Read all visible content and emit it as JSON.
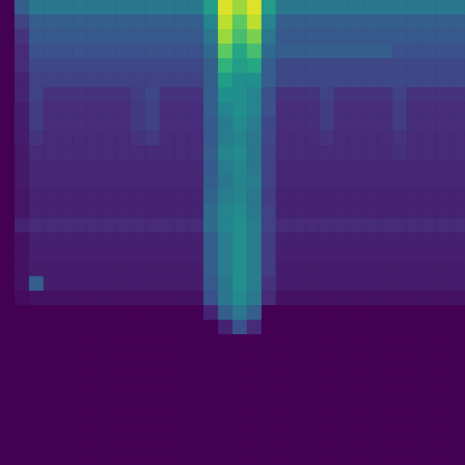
{
  "chart_data": {
    "type": "heatmap",
    "color": "viridis",
    "value_range": [
      0,
      1
    ],
    "tick_labels": false,
    "grid": false,
    "cells": [
      [
        0,
        0.3,
        0.4,
        0.4,
        0.4,
        0.4,
        0.4,
        0.4,
        0.4,
        0.4,
        0.4,
        0.4,
        0.4,
        0.4,
        0.55,
        0.95,
        0.85,
        0.95,
        0.55,
        0.4,
        0.4,
        0.4,
        0.4,
        0.4,
        0.4,
        0.4,
        0.4,
        0.4,
        0.4,
        0.4,
        0.4,
        0.4
      ],
      [
        0,
        0.2,
        0.3,
        0.3,
        0.3,
        0.3,
        0.3,
        0.3,
        0.3,
        0.3,
        0.3,
        0.3,
        0.3,
        0.3,
        0.45,
        0.9,
        0.75,
        0.9,
        0.45,
        0.3,
        0.3,
        0.3,
        0.3,
        0.3,
        0.3,
        0.3,
        0.3,
        0.3,
        0.3,
        0.3,
        0.3,
        0.3
      ],
      [
        0,
        0.15,
        0.28,
        0.28,
        0.28,
        0.28,
        0.28,
        0.28,
        0.28,
        0.28,
        0.28,
        0.28,
        0.28,
        0.28,
        0.4,
        0.85,
        0.7,
        0.8,
        0.4,
        0.28,
        0.28,
        0.28,
        0.28,
        0.28,
        0.28,
        0.28,
        0.28,
        0.28,
        0.28,
        0.28,
        0.28,
        0.28
      ],
      [
        0,
        0.12,
        0.25,
        0.25,
        0.25,
        0.25,
        0.25,
        0.25,
        0.25,
        0.25,
        0.25,
        0.25,
        0.25,
        0.25,
        0.35,
        0.75,
        0.6,
        0.7,
        0.35,
        0.3,
        0.3,
        0.3,
        0.3,
        0.3,
        0.3,
        0.3,
        0.3,
        0.25,
        0.25,
        0.25,
        0.25,
        0.25
      ],
      [
        0,
        0.12,
        0.22,
        0.22,
        0.22,
        0.22,
        0.22,
        0.22,
        0.22,
        0.22,
        0.22,
        0.22,
        0.22,
        0.22,
        0.3,
        0.65,
        0.55,
        0.6,
        0.3,
        0.22,
        0.22,
        0.22,
        0.22,
        0.22,
        0.22,
        0.22,
        0.22,
        0.22,
        0.22,
        0.22,
        0.22,
        0.22
      ],
      [
        0,
        0.1,
        0.2,
        0.2,
        0.2,
        0.2,
        0.2,
        0.2,
        0.2,
        0.2,
        0.2,
        0.2,
        0.2,
        0.2,
        0.3,
        0.55,
        0.5,
        0.5,
        0.3,
        0.22,
        0.22,
        0.22,
        0.22,
        0.22,
        0.22,
        0.22,
        0.22,
        0.22,
        0.22,
        0.22,
        0.22,
        0.22
      ],
      [
        0,
        0.1,
        0.2,
        0.15,
        0.15,
        0.15,
        0.15,
        0.15,
        0.15,
        0.18,
        0.22,
        0.15,
        0.15,
        0.15,
        0.3,
        0.5,
        0.5,
        0.45,
        0.25,
        0.15,
        0.15,
        0.15,
        0.2,
        0.15,
        0.15,
        0.15,
        0.15,
        0.2,
        0.15,
        0.15,
        0.15,
        0.15
      ],
      [
        0,
        0.08,
        0.18,
        0.13,
        0.13,
        0.13,
        0.13,
        0.13,
        0.13,
        0.17,
        0.2,
        0.13,
        0.13,
        0.13,
        0.3,
        0.45,
        0.5,
        0.45,
        0.25,
        0.13,
        0.13,
        0.13,
        0.18,
        0.13,
        0.13,
        0.13,
        0.13,
        0.18,
        0.13,
        0.13,
        0.13,
        0.13
      ],
      [
        0,
        0.08,
        0.18,
        0.13,
        0.13,
        0.13,
        0.13,
        0.13,
        0.13,
        0.17,
        0.2,
        0.13,
        0.13,
        0.13,
        0.28,
        0.42,
        0.48,
        0.42,
        0.22,
        0.13,
        0.13,
        0.13,
        0.18,
        0.13,
        0.13,
        0.13,
        0.13,
        0.18,
        0.13,
        0.13,
        0.13,
        0.13
      ],
      [
        0,
        0.08,
        0.15,
        0.12,
        0.12,
        0.12,
        0.12,
        0.12,
        0.12,
        0.15,
        0.17,
        0.12,
        0.12,
        0.12,
        0.28,
        0.42,
        0.45,
        0.4,
        0.22,
        0.12,
        0.12,
        0.12,
        0.15,
        0.12,
        0.12,
        0.12,
        0.12,
        0.15,
        0.12,
        0.12,
        0.12,
        0.12
      ],
      [
        0,
        0.07,
        0.12,
        0.12,
        0.12,
        0.12,
        0.12,
        0.12,
        0.12,
        0.12,
        0.12,
        0.12,
        0.12,
        0.12,
        0.3,
        0.45,
        0.48,
        0.4,
        0.2,
        0.12,
        0.12,
        0.12,
        0.12,
        0.12,
        0.12,
        0.12,
        0.12,
        0.14,
        0.12,
        0.12,
        0.12,
        0.12
      ],
      [
        0,
        0.07,
        0.11,
        0.11,
        0.11,
        0.11,
        0.11,
        0.11,
        0.11,
        0.11,
        0.11,
        0.11,
        0.11,
        0.11,
        0.28,
        0.42,
        0.46,
        0.4,
        0.2,
        0.11,
        0.11,
        0.11,
        0.11,
        0.11,
        0.11,
        0.11,
        0.11,
        0.11,
        0.11,
        0.11,
        0.11,
        0.11
      ],
      [
        0,
        0.07,
        0.11,
        0.11,
        0.11,
        0.11,
        0.11,
        0.11,
        0.11,
        0.11,
        0.11,
        0.11,
        0.11,
        0.11,
        0.3,
        0.4,
        0.45,
        0.42,
        0.2,
        0.11,
        0.11,
        0.11,
        0.11,
        0.11,
        0.11,
        0.11,
        0.11,
        0.11,
        0.11,
        0.11,
        0.11,
        0.11
      ],
      [
        0,
        0.06,
        0.1,
        0.1,
        0.1,
        0.1,
        0.1,
        0.1,
        0.1,
        0.1,
        0.1,
        0.1,
        0.1,
        0.1,
        0.32,
        0.42,
        0.45,
        0.4,
        0.18,
        0.1,
        0.1,
        0.1,
        0.1,
        0.1,
        0.1,
        0.1,
        0.1,
        0.1,
        0.1,
        0.1,
        0.1,
        0.1
      ],
      [
        0,
        0.06,
        0.1,
        0.1,
        0.1,
        0.1,
        0.1,
        0.1,
        0.1,
        0.1,
        0.1,
        0.1,
        0.1,
        0.1,
        0.35,
        0.45,
        0.48,
        0.4,
        0.2,
        0.1,
        0.1,
        0.1,
        0.1,
        0.1,
        0.1,
        0.1,
        0.1,
        0.1,
        0.1,
        0.1,
        0.1,
        0.1
      ],
      [
        0,
        0.1,
        0.12,
        0.12,
        0.12,
        0.12,
        0.12,
        0.12,
        0.12,
        0.12,
        0.12,
        0.12,
        0.12,
        0.12,
        0.35,
        0.45,
        0.5,
        0.42,
        0.2,
        0.12,
        0.12,
        0.12,
        0.12,
        0.12,
        0.12,
        0.12,
        0.12,
        0.12,
        0.12,
        0.12,
        0.12,
        0.12
      ],
      [
        0,
        0.05,
        0.09,
        0.09,
        0.09,
        0.09,
        0.09,
        0.09,
        0.09,
        0.09,
        0.09,
        0.09,
        0.09,
        0.09,
        0.3,
        0.42,
        0.5,
        0.42,
        0.18,
        0.09,
        0.09,
        0.09,
        0.09,
        0.09,
        0.09,
        0.09,
        0.09,
        0.09,
        0.09,
        0.09,
        0.09,
        0.09
      ],
      [
        0,
        0.05,
        0.09,
        0.09,
        0.09,
        0.09,
        0.09,
        0.09,
        0.09,
        0.09,
        0.09,
        0.09,
        0.09,
        0.09,
        0.3,
        0.42,
        0.5,
        0.42,
        0.18,
        0.09,
        0.09,
        0.09,
        0.09,
        0.09,
        0.09,
        0.09,
        0.09,
        0.09,
        0.09,
        0.09,
        0.09,
        0.09
      ],
      [
        0,
        0.05,
        0.08,
        0.08,
        0.08,
        0.08,
        0.08,
        0.08,
        0.08,
        0.08,
        0.08,
        0.08,
        0.08,
        0.08,
        0.3,
        0.42,
        0.5,
        0.42,
        0.18,
        0.08,
        0.08,
        0.08,
        0.08,
        0.08,
        0.08,
        0.08,
        0.08,
        0.08,
        0.08,
        0.08,
        0.08,
        0.08
      ],
      [
        0,
        0.05,
        0.3,
        0.08,
        0.08,
        0.08,
        0.08,
        0.08,
        0.08,
        0.08,
        0.08,
        0.08,
        0.08,
        0.08,
        0.28,
        0.4,
        0.5,
        0.42,
        0.15,
        0.08,
        0.08,
        0.08,
        0.08,
        0.08,
        0.08,
        0.08,
        0.08,
        0.08,
        0.08,
        0.08,
        0.08,
        0.08
      ],
      [
        0,
        0.03,
        0.05,
        0.05,
        0.05,
        0.05,
        0.05,
        0.05,
        0.05,
        0.05,
        0.05,
        0.05,
        0.05,
        0.05,
        0.25,
        0.4,
        0.48,
        0.4,
        0.12,
        0.05,
        0.05,
        0.05,
        0.05,
        0.05,
        0.05,
        0.05,
        0.05,
        0.05,
        0.05,
        0.05,
        0.05,
        0.05
      ],
      [
        0,
        0,
        0,
        0,
        0,
        0,
        0,
        0,
        0,
        0,
        0,
        0,
        0,
        0,
        0.1,
        0.3,
        0.4,
        0.3,
        0,
        0,
        0,
        0,
        0,
        0,
        0,
        0,
        0,
        0,
        0,
        0,
        0,
        0
      ],
      [
        0,
        0,
        0,
        0,
        0,
        0,
        0,
        0,
        0,
        0,
        0,
        0,
        0,
        0,
        0,
        0.1,
        0.25,
        0.12,
        0,
        0,
        0,
        0,
        0,
        0,
        0,
        0,
        0,
        0,
        0,
        0,
        0,
        0
      ],
      [
        0,
        0,
        0,
        0,
        0,
        0,
        0,
        0,
        0,
        0,
        0,
        0,
        0,
        0,
        0,
        0,
        0,
        0,
        0,
        0,
        0,
        0,
        0,
        0,
        0,
        0,
        0,
        0,
        0,
        0,
        0,
        0
      ],
      [
        0,
        0,
        0,
        0,
        0,
        0,
        0,
        0,
        0,
        0,
        0,
        0,
        0,
        0,
        0,
        0,
        0,
        0,
        0,
        0,
        0,
        0,
        0,
        0,
        0,
        0,
        0,
        0,
        0,
        0,
        0,
        0
      ],
      [
        0,
        0,
        0,
        0,
        0,
        0,
        0,
        0,
        0,
        0,
        0,
        0,
        0,
        0,
        0,
        0,
        0,
        0,
        0,
        0,
        0,
        0,
        0,
        0,
        0,
        0,
        0,
        0,
        0,
        0,
        0,
        0
      ],
      [
        0,
        0,
        0,
        0,
        0,
        0,
        0,
        0,
        0,
        0,
        0,
        0,
        0,
        0,
        0,
        0,
        0,
        0,
        0,
        0,
        0,
        0,
        0,
        0,
        0,
        0,
        0,
        0,
        0,
        0,
        0,
        0
      ],
      [
        0,
        0,
        0,
        0,
        0,
        0,
        0,
        0,
        0,
        0,
        0,
        0,
        0,
        0,
        0,
        0,
        0,
        0,
        0,
        0,
        0,
        0,
        0,
        0,
        0,
        0,
        0,
        0,
        0,
        0,
        0,
        0
      ],
      [
        0,
        0,
        0,
        0,
        0,
        0,
        0,
        0,
        0,
        0,
        0,
        0,
        0,
        0,
        0,
        0,
        0,
        0,
        0,
        0,
        0,
        0,
        0,
        0,
        0,
        0,
        0,
        0,
        0,
        0,
        0,
        0
      ],
      [
        0,
        0,
        0,
        0,
        0,
        0,
        0,
        0,
        0,
        0,
        0,
        0,
        0,
        0,
        0,
        0,
        0,
        0,
        0,
        0,
        0,
        0,
        0,
        0,
        0,
        0,
        0,
        0,
        0,
        0,
        0,
        0
      ],
      [
        0,
        0,
        0,
        0,
        0,
        0,
        0,
        0,
        0,
        0,
        0,
        0,
        0,
        0,
        0,
        0,
        0,
        0,
        0,
        0,
        0,
        0,
        0,
        0,
        0,
        0,
        0,
        0,
        0,
        0,
        0,
        0
      ],
      [
        0,
        0,
        0,
        0,
        0,
        0,
        0,
        0,
        0,
        0,
        0,
        0,
        0,
        0,
        0,
        0,
        0,
        0,
        0,
        0,
        0,
        0,
        0,
        0,
        0,
        0,
        0,
        0,
        0,
        0,
        0,
        0
      ]
    ]
  }
}
